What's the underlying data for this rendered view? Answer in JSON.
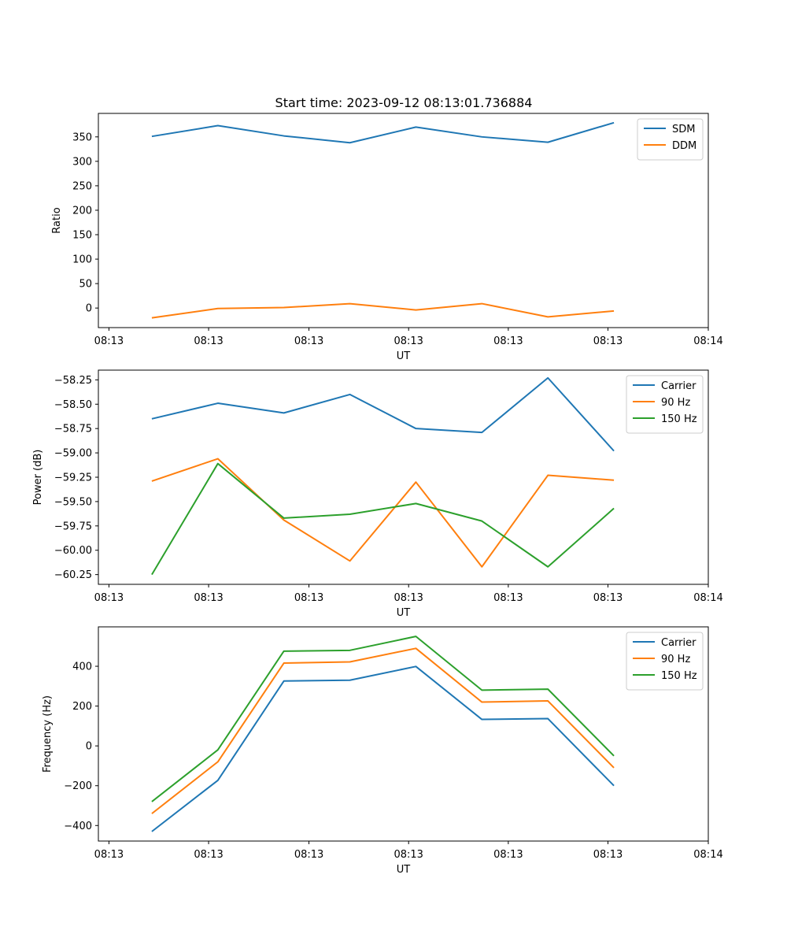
{
  "figure_title": "Start time: 2023-09-12 08:13:01.736884",
  "colors": {
    "blue": "#1f77b4",
    "orange": "#ff7f0e",
    "green": "#2ca02c"
  },
  "chart_data": [
    {
      "type": "line",
      "title": "Start time: 2023-09-12 08:13:01.736884",
      "xlabel": "UT",
      "ylabel": "Ratio",
      "x": [
        1,
        2,
        3,
        4,
        5,
        6,
        7,
        8
      ],
      "xlim": [
        0.19,
        9.43
      ],
      "xticks": [
        0.35,
        1.86,
        3.38,
        4.89,
        6.4,
        7.91,
        9.43
      ],
      "xtick_labels": [
        "08:13",
        "08:13",
        "08:13",
        "08:13",
        "08:13",
        "08:13",
        "08:14"
      ],
      "ylim": [
        -40,
        398
      ],
      "yticks": [
        0,
        50,
        100,
        150,
        200,
        250,
        300,
        350
      ],
      "ytick_labels": [
        "0",
        "50",
        "100",
        "150",
        "200",
        "250",
        "300",
        "350"
      ],
      "legend": "top-right",
      "series": [
        {
          "name": "SDM",
          "color": "#1f77b4",
          "values": [
            351,
            373,
            352,
            338,
            370,
            350,
            339,
            379
          ]
        },
        {
          "name": "DDM",
          "color": "#ff7f0e",
          "values": [
            -20,
            -1,
            1,
            9,
            -4,
            9,
            -18,
            -6
          ]
        }
      ]
    },
    {
      "type": "line",
      "title": "",
      "xlabel": "UT",
      "ylabel": "Power (dB)",
      "x": [
        1,
        2,
        3,
        4,
        5,
        6,
        7,
        8
      ],
      "xlim": [
        0.19,
        9.43
      ],
      "xticks": [
        0.35,
        1.86,
        3.38,
        4.89,
        6.4,
        7.91,
        9.43
      ],
      "xtick_labels": [
        "08:13",
        "08:13",
        "08:13",
        "08:13",
        "08:13",
        "08:13",
        "08:14"
      ],
      "ylim": [
        -60.35,
        -58.15
      ],
      "yticks": [
        -60.25,
        -60.0,
        -59.75,
        -59.5,
        -59.25,
        -59.0,
        -58.75,
        -58.5,
        -58.25
      ],
      "ytick_labels": [
        "−60.25",
        "−60.00",
        "−59.75",
        "−59.50",
        "−59.25",
        "−59.00",
        "−58.75",
        "−58.50",
        "−58.25"
      ],
      "legend": "top-right",
      "series": [
        {
          "name": "Carrier",
          "color": "#1f77b4",
          "values": [
            -58.65,
            -58.49,
            -58.59,
            -58.4,
            -58.75,
            -58.79,
            -58.23,
            -58.98
          ]
        },
        {
          "name": "90 Hz",
          "color": "#ff7f0e",
          "values": [
            -59.29,
            -59.06,
            -59.69,
            -60.11,
            -59.3,
            -60.17,
            -59.23,
            -59.28
          ]
        },
        {
          "name": "150 Hz",
          "color": "#2ca02c",
          "values": [
            -60.25,
            -59.11,
            -59.67,
            -59.63,
            -59.52,
            -59.7,
            -60.17,
            -59.57
          ]
        }
      ]
    },
    {
      "type": "line",
      "title": "",
      "xlabel": "UT",
      "ylabel": "Frequency (Hz)",
      "x": [
        1,
        2,
        3,
        4,
        5,
        6,
        7,
        8
      ],
      "xlim": [
        0.19,
        9.43
      ],
      "xticks": [
        0.35,
        1.86,
        3.38,
        4.89,
        6.4,
        7.91,
        9.43
      ],
      "xtick_labels": [
        "08:13",
        "08:13",
        "08:13",
        "08:13",
        "08:13",
        "08:13",
        "08:14"
      ],
      "ylim": [
        -478,
        598
      ],
      "yticks": [
        -400,
        -200,
        0,
        200,
        400
      ],
      "ytick_labels": [
        "−400",
        "−200",
        "0",
        "200",
        "400"
      ],
      "legend": "top-right",
      "series": [
        {
          "name": "Carrier",
          "color": "#1f77b4",
          "values": [
            -430,
            -173,
            326,
            330,
            399,
            133,
            137,
            -200
          ]
        },
        {
          "name": "90 Hz",
          "color": "#ff7f0e",
          "values": [
            -340,
            -80,
            416,
            422,
            490,
            220,
            226,
            -110
          ]
        },
        {
          "name": "150 Hz",
          "color": "#2ca02c",
          "values": [
            -280,
            -20,
            476,
            480,
            550,
            280,
            285,
            -50
          ]
        }
      ]
    }
  ]
}
